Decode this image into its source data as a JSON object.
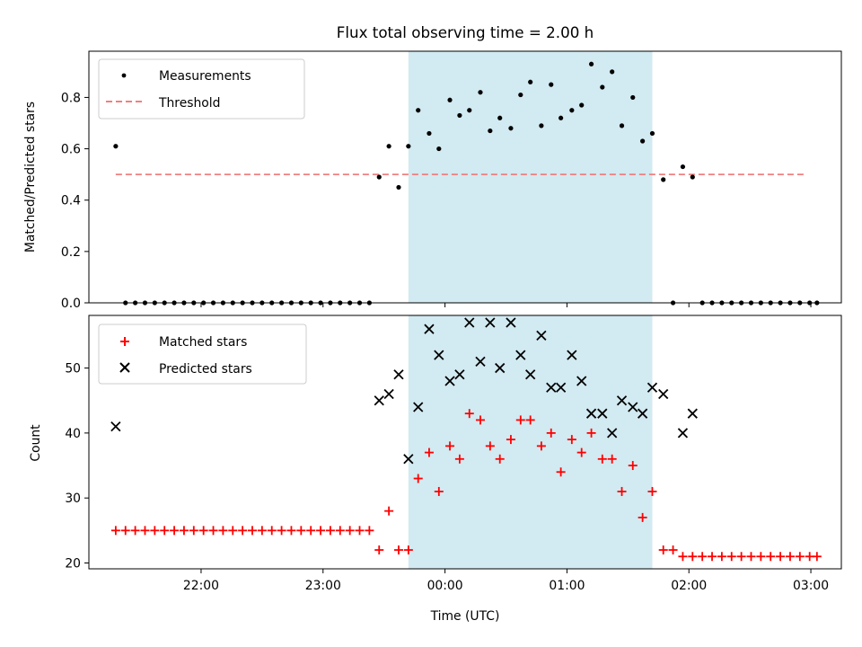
{
  "chart_data": {
    "title": "Flux total observing time = 2.00 h",
    "xlabel": "Time (UTC)",
    "x_unit": "hours UTC (values > 24 are after midnight)",
    "xlim": [
      21.08,
      27.25
    ],
    "x_ticks": [
      {
        "v": 22,
        "label": "22:00"
      },
      {
        "v": 23,
        "label": "23:00"
      },
      {
        "v": 24,
        "label": "00:00"
      },
      {
        "v": 25,
        "label": "01:00"
      },
      {
        "v": 26,
        "label": "02:00"
      },
      {
        "v": 27,
        "label": "03:00"
      }
    ],
    "shaded_span": [
      23.7,
      25.7
    ],
    "shade_color": "#add8e6",
    "top": {
      "type": "scatter",
      "ylabel": "Matched/Predicted stars",
      "ylim": [
        0,
        0.98
      ],
      "y_ticks": [
        "0.0",
        "0.2",
        "0.4",
        "0.6",
        "0.8"
      ],
      "y_tick_values": [
        0,
        0.2,
        0.4,
        0.6,
        0.8
      ],
      "threshold": {
        "name": "Threshold",
        "value": 0.5,
        "x_range": [
          21.3,
          26.95
        ],
        "color": "#f08080"
      },
      "measurements": {
        "name": "Measurements",
        "color": "#000000",
        "points": [
          [
            21.3,
            0.61
          ],
          [
            21.38,
            0
          ],
          [
            21.46,
            0
          ],
          [
            21.54,
            0
          ],
          [
            21.62,
            0
          ],
          [
            21.7,
            0
          ],
          [
            21.78,
            0
          ],
          [
            21.86,
            0
          ],
          [
            21.94,
            0
          ],
          [
            22.02,
            0
          ],
          [
            22.1,
            0
          ],
          [
            22.18,
            0
          ],
          [
            22.26,
            0
          ],
          [
            22.34,
            0
          ],
          [
            22.42,
            0
          ],
          [
            22.5,
            0
          ],
          [
            22.58,
            0
          ],
          [
            22.66,
            0
          ],
          [
            22.74,
            0
          ],
          [
            22.82,
            0
          ],
          [
            22.9,
            0
          ],
          [
            22.98,
            0
          ],
          [
            23.06,
            0
          ],
          [
            23.14,
            0
          ],
          [
            23.22,
            0
          ],
          [
            23.3,
            0
          ],
          [
            23.38,
            0
          ],
          [
            23.46,
            0.49
          ],
          [
            23.54,
            0.61
          ],
          [
            23.62,
            0.45
          ],
          [
            23.7,
            0.61
          ],
          [
            23.78,
            0.75
          ],
          [
            23.87,
            0.66
          ],
          [
            23.95,
            0.6
          ],
          [
            24.04,
            0.79
          ],
          [
            24.12,
            0.73
          ],
          [
            24.2,
            0.75
          ],
          [
            24.29,
            0.82
          ],
          [
            24.37,
            0.67
          ],
          [
            24.45,
            0.72
          ],
          [
            24.54,
            0.68
          ],
          [
            24.62,
            0.81
          ],
          [
            24.7,
            0.86
          ],
          [
            24.79,
            0.69
          ],
          [
            24.87,
            0.85
          ],
          [
            24.95,
            0.72
          ],
          [
            25.04,
            0.75
          ],
          [
            25.12,
            0.77
          ],
          [
            25.2,
            0.93
          ],
          [
            25.29,
            0.84
          ],
          [
            25.37,
            0.9
          ],
          [
            25.45,
            0.69
          ],
          [
            25.54,
            0.8
          ],
          [
            25.62,
            0.63
          ],
          [
            25.7,
            0.66
          ],
          [
            25.79,
            0.48
          ],
          [
            25.87,
            0
          ],
          [
            25.95,
            0.53
          ],
          [
            26.03,
            0.49
          ],
          [
            26.11,
            0
          ],
          [
            26.19,
            0
          ],
          [
            26.27,
            0
          ],
          [
            26.35,
            0
          ],
          [
            26.43,
            0
          ],
          [
            26.51,
            0
          ],
          [
            26.59,
            0
          ],
          [
            26.67,
            0
          ],
          [
            26.75,
            0
          ],
          [
            26.83,
            0
          ],
          [
            26.91,
            0
          ],
          [
            26.99,
            0
          ],
          [
            27.05,
            0
          ]
        ]
      }
    },
    "bottom": {
      "type": "scatter",
      "ylabel": "Count",
      "ylim": [
        19.1,
        58.1
      ],
      "y_ticks": [
        "20",
        "30",
        "40",
        "50"
      ],
      "y_tick_values": [
        20,
        30,
        40,
        50
      ],
      "matched": {
        "name": "Matched stars",
        "color": "#ff0000",
        "points": [
          [
            21.3,
            25
          ],
          [
            21.38,
            25
          ],
          [
            21.46,
            25
          ],
          [
            21.54,
            25
          ],
          [
            21.62,
            25
          ],
          [
            21.7,
            25
          ],
          [
            21.78,
            25
          ],
          [
            21.86,
            25
          ],
          [
            21.94,
            25
          ],
          [
            22.02,
            25
          ],
          [
            22.1,
            25
          ],
          [
            22.18,
            25
          ],
          [
            22.26,
            25
          ],
          [
            22.34,
            25
          ],
          [
            22.42,
            25
          ],
          [
            22.5,
            25
          ],
          [
            22.58,
            25
          ],
          [
            22.66,
            25
          ],
          [
            22.74,
            25
          ],
          [
            22.82,
            25
          ],
          [
            22.9,
            25
          ],
          [
            22.98,
            25
          ],
          [
            23.06,
            25
          ],
          [
            23.14,
            25
          ],
          [
            23.22,
            25
          ],
          [
            23.3,
            25
          ],
          [
            23.38,
            25
          ],
          [
            23.46,
            22
          ],
          [
            23.54,
            28
          ],
          [
            23.62,
            22
          ],
          [
            23.7,
            22
          ],
          [
            23.78,
            33
          ],
          [
            23.87,
            37
          ],
          [
            23.95,
            31
          ],
          [
            24.04,
            38
          ],
          [
            24.12,
            36
          ],
          [
            24.2,
            43
          ],
          [
            24.29,
            42
          ],
          [
            24.37,
            38
          ],
          [
            24.45,
            36
          ],
          [
            24.54,
            39
          ],
          [
            24.62,
            42
          ],
          [
            24.7,
            42
          ],
          [
            24.79,
            38
          ],
          [
            24.87,
            40
          ],
          [
            24.95,
            34
          ],
          [
            25.04,
            39
          ],
          [
            25.12,
            37
          ],
          [
            25.2,
            40
          ],
          [
            25.29,
            36
          ],
          [
            25.37,
            36
          ],
          [
            25.45,
            31
          ],
          [
            25.54,
            35
          ],
          [
            25.62,
            27
          ],
          [
            25.7,
            31
          ],
          [
            25.79,
            22
          ],
          [
            25.87,
            22
          ],
          [
            25.95,
            21
          ],
          [
            26.03,
            21
          ],
          [
            26.11,
            21
          ],
          [
            26.19,
            21
          ],
          [
            26.27,
            21
          ],
          [
            26.35,
            21
          ],
          [
            26.43,
            21
          ],
          [
            26.51,
            21
          ],
          [
            26.59,
            21
          ],
          [
            26.67,
            21
          ],
          [
            26.75,
            21
          ],
          [
            26.83,
            21
          ],
          [
            26.91,
            21
          ],
          [
            26.99,
            21
          ],
          [
            27.05,
            21
          ]
        ]
      },
      "predicted": {
        "name": "Predicted stars",
        "color": "#000000",
        "points": [
          [
            21.3,
            41
          ],
          [
            23.46,
            45
          ],
          [
            23.54,
            46
          ],
          [
            23.62,
            49
          ],
          [
            23.7,
            36
          ],
          [
            23.78,
            44
          ],
          [
            23.87,
            56
          ],
          [
            23.95,
            52
          ],
          [
            24.04,
            48
          ],
          [
            24.12,
            49
          ],
          [
            24.2,
            57
          ],
          [
            24.29,
            51
          ],
          [
            24.37,
            57
          ],
          [
            24.45,
            50
          ],
          [
            24.54,
            57
          ],
          [
            24.62,
            52
          ],
          [
            24.7,
            49
          ],
          [
            24.79,
            55
          ],
          [
            24.87,
            47
          ],
          [
            24.95,
            47
          ],
          [
            25.04,
            52
          ],
          [
            25.12,
            48
          ],
          [
            25.2,
            43
          ],
          [
            25.29,
            43
          ],
          [
            25.37,
            40
          ],
          [
            25.45,
            45
          ],
          [
            25.54,
            44
          ],
          [
            25.62,
            43
          ],
          [
            25.7,
            47
          ],
          [
            25.79,
            46
          ],
          [
            25.95,
            40
          ],
          [
            26.03,
            43
          ]
        ]
      }
    }
  }
}
